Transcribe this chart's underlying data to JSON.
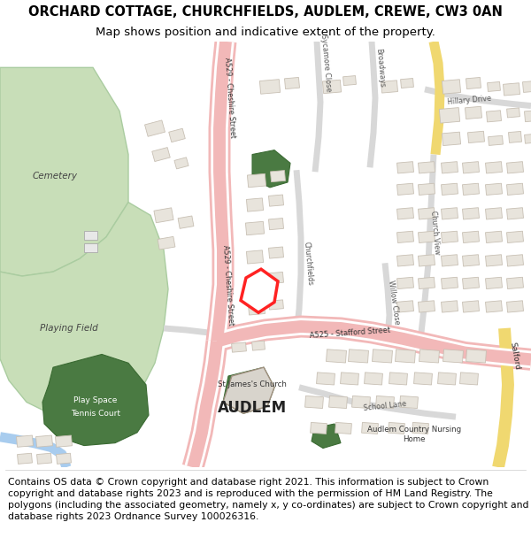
{
  "title_line1": "ORCHARD COTTAGE, CHURCHFIELDS, AUDLEM, CREWE, CW3 0AN",
  "title_line2": "Map shows position and indicative extent of the property.",
  "copyright_text": "Contains OS data © Crown copyright and database right 2021. This information is subject to Crown copyright and database rights 2023 and is reproduced with the permission of HM Land Registry. The polygons (including the associated geometry, namely x, y co-ordinates) are subject to Crown copyright and database rights 2023 Ordnance Survey 100026316.",
  "map_bg": "#f9f9f7",
  "road_main_color": "#f2b8b8",
  "green_light": "#c8deb8",
  "green_dark": "#4a7a42",
  "building_color": "#e8e4dc",
  "building_edge": "#c8c0b4",
  "highlight_color": "#ff0000",
  "water_color": "#a8ccee",
  "yellow_road": "#f0d870",
  "title_fontsize": 10.5,
  "subtitle_fontsize": 9.5,
  "copyright_fontsize": 7.8
}
